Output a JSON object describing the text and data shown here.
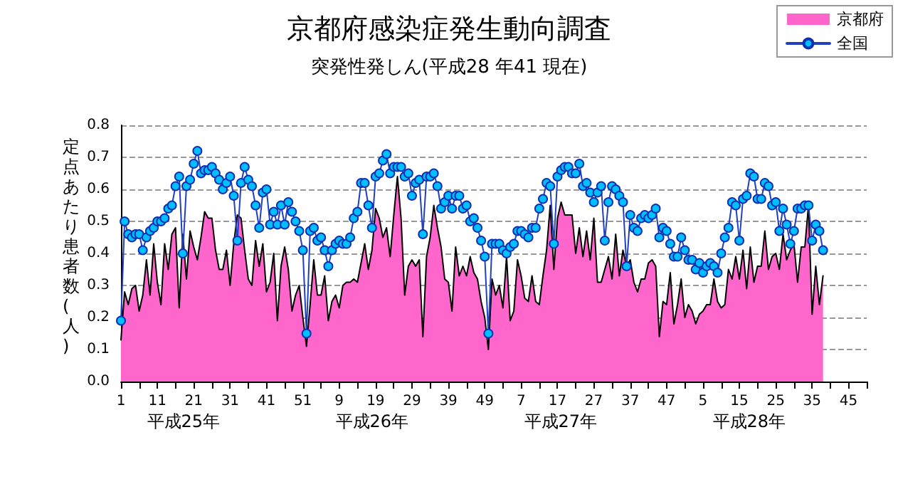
{
  "chart_data": {
    "type": "line",
    "title": "京都府感染症発生動向調査",
    "subtitle": "突発性発しん(平成28 年41 現在)",
    "ylabel": "定点あたり患者数(人)",
    "annotations": [
      "平成25年",
      "平成26年",
      "平成27年",
      "平成28年"
    ],
    "categories": [
      "1",
      null,
      null,
      null,
      null,
      null,
      null,
      null,
      null,
      null,
      "11",
      null,
      null,
      null,
      null,
      null,
      null,
      null,
      null,
      null,
      "21",
      null,
      null,
      null,
      null,
      null,
      null,
      null,
      null,
      null,
      "31",
      null,
      null,
      null,
      null,
      null,
      null,
      null,
      null,
      null,
      "41",
      null,
      null,
      null,
      null,
      null,
      null,
      null,
      null,
      null,
      "51",
      null,
      null,
      null,
      null,
      null,
      null,
      null,
      null,
      null,
      "9",
      null,
      null,
      null,
      null,
      null,
      null,
      null,
      null,
      null,
      "19",
      null,
      null,
      null,
      null,
      null,
      null,
      null,
      null,
      null,
      "29",
      null,
      null,
      null,
      null,
      null,
      null,
      null,
      null,
      null,
      "39",
      null,
      null,
      null,
      null,
      null,
      null,
      null,
      null,
      null,
      "49",
      null,
      null,
      null,
      null,
      null,
      null,
      null,
      null,
      null,
      "7",
      null,
      null,
      null,
      null,
      null,
      null,
      null,
      null,
      null,
      "17",
      null,
      null,
      null,
      null,
      null,
      null,
      null,
      null,
      null,
      "27",
      null,
      null,
      null,
      null,
      null,
      null,
      null,
      null,
      null,
      "37",
      null,
      null,
      null,
      null,
      null,
      null,
      null,
      null,
      null,
      "47",
      null,
      null,
      null,
      null,
      null,
      null,
      null,
      null,
      null,
      "5",
      null,
      null,
      null,
      null,
      null,
      null,
      null,
      null,
      null,
      "15",
      null,
      null,
      null,
      null,
      null,
      null,
      null,
      null,
      null,
      "25",
      null,
      null,
      null,
      null,
      null,
      null,
      null,
      null,
      null,
      "35",
      null,
      null,
      null,
      null,
      null,
      null,
      null,
      null,
      null,
      "45",
      null,
      null,
      null,
      null,
      null
    ],
    "series": [
      {
        "name": "京都府",
        "type": "area",
        "marker": "none",
        "color": "#ff66cc",
        "values": [
          0.13,
          0.28,
          0.24,
          0.29,
          0.3,
          0.22,
          0.27,
          0.38,
          0.27,
          0.43,
          0.31,
          0.24,
          0.43,
          0.35,
          0.46,
          0.48,
          0.23,
          0.46,
          0.32,
          0.47,
          0.42,
          0.38,
          0.45,
          0.53,
          0.51,
          0.51,
          0.41,
          0.35,
          0.35,
          0.41,
          0.3,
          0.43,
          0.52,
          0.51,
          0.41,
          0.32,
          0.3,
          0.44,
          0.36,
          0.43,
          0.28,
          0.31,
          0.4,
          0.19,
          0.36,
          0.42,
          0.35,
          0.22,
          0.27,
          0.3,
          0.2,
          0.11,
          0.24,
          0.38,
          0.27,
          0.27,
          0.33,
          0.19,
          0.25,
          0.27,
          0.23,
          0.3,
          0.31,
          0.31,
          0.32,
          0.31,
          0.37,
          0.43,
          0.35,
          0.41,
          0.54,
          0.51,
          0.45,
          0.48,
          0.39,
          0.52,
          0.64,
          0.51,
          0.27,
          0.36,
          0.38,
          0.36,
          0.38,
          0.14,
          0.39,
          0.45,
          0.55,
          0.48,
          0.42,
          0.32,
          0.31,
          0.22,
          0.42,
          0.33,
          0.36,
          0.33,
          0.39,
          0.34,
          0.32,
          0.25,
          0.2,
          0.1,
          0.32,
          0.27,
          0.3,
          0.23,
          0.39,
          0.19,
          0.22,
          0.38,
          0.33,
          0.26,
          0.25,
          0.33,
          0.25,
          0.24,
          0.33,
          0.41,
          0.55,
          0.35,
          0.51,
          0.56,
          0.52,
          0.52,
          0.52,
          0.4,
          0.48,
          0.39,
          0.47,
          0.38,
          0.51,
          0.31,
          0.31,
          0.35,
          0.39,
          0.32,
          0.46,
          0.33,
          0.41,
          0.36,
          0.38,
          0.31,
          0.28,
          0.32,
          0.32,
          0.37,
          0.38,
          0.36,
          0.14,
          0.25,
          0.24,
          0.34,
          0.18,
          0.24,
          0.32,
          0.2,
          0.24,
          0.22,
          0.18,
          0.21,
          0.22,
          0.24,
          0.24,
          0.32,
          0.25,
          0.23,
          0.24,
          0.35,
          0.32,
          0.39,
          0.32,
          0.41,
          0.29,
          0.42,
          0.31,
          0.36,
          0.36,
          0.47,
          0.35,
          0.39,
          0.4,
          0.35,
          0.46,
          0.38,
          0.41,
          0.43,
          0.31,
          0.42,
          0.42,
          0.55,
          0.21,
          0.36,
          0.24,
          0.33,
          null,
          null,
          null,
          null,
          null,
          null,
          null,
          null,
          null,
          null,
          null,
          null
        ]
      },
      {
        "name": "全国",
        "type": "line",
        "marker": "circle",
        "color": "#00bfff",
        "values": [
          0.19,
          0.5,
          0.46,
          0.45,
          0.46,
          0.46,
          0.41,
          0.45,
          0.47,
          0.48,
          0.5,
          0.5,
          0.51,
          0.54,
          0.55,
          0.61,
          0.64,
          0.4,
          0.61,
          0.63,
          0.68,
          0.72,
          0.65,
          0.66,
          0.66,
          0.67,
          0.65,
          0.63,
          0.6,
          0.62,
          0.64,
          0.58,
          0.44,
          0.62,
          0.67,
          0.63,
          0.61,
          0.55,
          0.48,
          0.59,
          0.6,
          0.49,
          0.53,
          0.49,
          0.55,
          0.49,
          0.56,
          0.53,
          0.5,
          0.47,
          0.41,
          0.15,
          0.47,
          0.48,
          0.44,
          0.45,
          0.41,
          0.36,
          0.41,
          0.43,
          0.44,
          0.43,
          0.43,
          0.45,
          0.51,
          0.53,
          0.62,
          0.62,
          0.55,
          0.48,
          0.64,
          0.65,
          0.69,
          0.71,
          0.65,
          0.67,
          0.67,
          0.67,
          0.64,
          0.65,
          0.58,
          0.62,
          0.63,
          0.46,
          0.64,
          0.64,
          0.65,
          0.61,
          0.54,
          0.56,
          0.58,
          0.54,
          0.58,
          0.58,
          0.54,
          0.55,
          0.5,
          0.51,
          0.48,
          0.44,
          0.39,
          0.15,
          0.43,
          0.43,
          0.43,
          0.41,
          0.4,
          0.42,
          0.43,
          0.47,
          0.47,
          0.46,
          0.45,
          0.48,
          0.48,
          0.54,
          0.57,
          0.62,
          0.61,
          0.43,
          0.64,
          0.66,
          0.67,
          0.67,
          0.65,
          0.65,
          0.68,
          0.61,
          0.62,
          0.59,
          0.56,
          0.59,
          0.61,
          0.44,
          0.56,
          0.61,
          0.6,
          0.58,
          0.56,
          0.36,
          0.52,
          0.48,
          0.47,
          0.51,
          0.52,
          0.51,
          0.52,
          0.54,
          0.45,
          0.48,
          0.47,
          0.43,
          0.39,
          0.39,
          0.45,
          0.41,
          0.38,
          0.38,
          0.35,
          0.37,
          0.34,
          0.36,
          0.37,
          0.36,
          0.34,
          0.4,
          0.45,
          0.48,
          0.56,
          0.55,
          0.44,
          0.57,
          0.58,
          0.65,
          0.64,
          0.57,
          0.57,
          0.62,
          0.61,
          0.55,
          0.56,
          0.47,
          0.54,
          0.49,
          0.43,
          0.47,
          0.54,
          0.54,
          0.55,
          0.55,
          0.44,
          0.49,
          0.47,
          0.41,
          null,
          null,
          null,
          null,
          null,
          null,
          null,
          null,
          null,
          null,
          null,
          null
        ]
      }
    ],
    "ylim": [
      0,
      0.8
    ],
    "yticks": [
      {
        "value": 0,
        "label": "0.0"
      },
      {
        "value": 0.1,
        "label": "0.1"
      },
      {
        "value": 0.2,
        "label": "0.2"
      },
      {
        "value": 0.3,
        "label": "0.3"
      },
      {
        "value": 0.4,
        "label": "0.4"
      },
      {
        "value": 0.5,
        "label": "0.5"
      },
      {
        "value": 0.6,
        "label": "0.6"
      },
      {
        "value": 0.7,
        "label": "0.7"
      },
      {
        "value": 0.8,
        "label": "0.8"
      }
    ],
    "grid": "y",
    "legend": "top right"
  }
}
